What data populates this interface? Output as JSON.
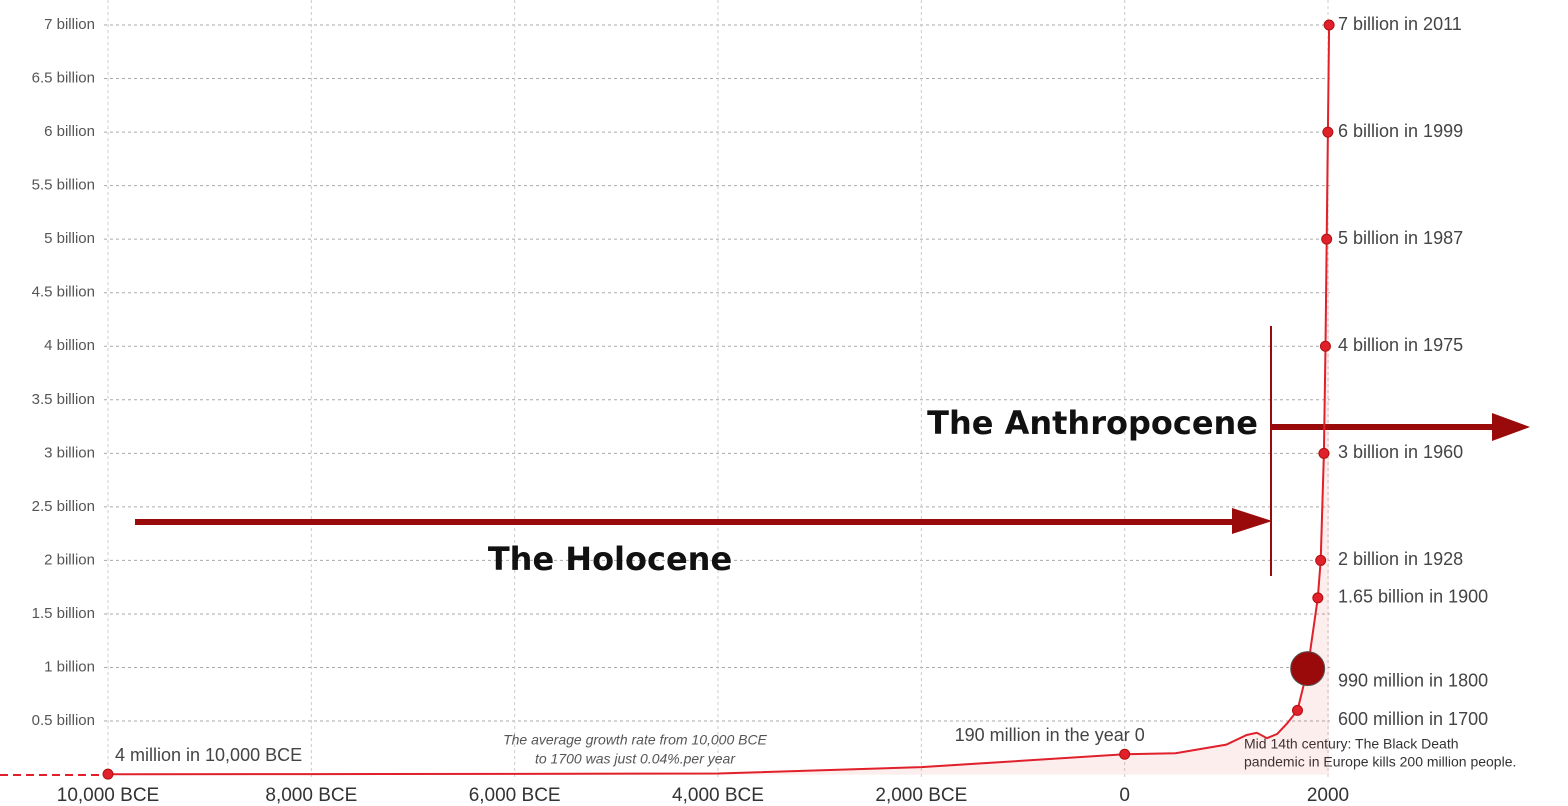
{
  "chart_data": {
    "type": "line",
    "color": "#e0202a",
    "x": [
      -10000,
      -8000,
      -6000,
      -4000,
      -2000,
      0,
      500,
      1000,
      1200,
      1300,
      1400,
      1500,
      1600,
      1700,
      1800,
      1900,
      1928,
      1960,
      1975,
      1987,
      1999,
      2011
    ],
    "values": [
      0.004,
      0.005,
      0.007,
      0.01,
      0.07,
      0.19,
      0.2,
      0.28,
      0.37,
      0.39,
      0.34,
      0.38,
      0.48,
      0.6,
      0.99,
      1.65,
      2,
      3,
      4,
      5,
      6,
      7
    ],
    "markers": {
      "x": [
        -10000,
        0,
        1700,
        1800,
        1900,
        1928,
        1960,
        1975,
        1987,
        1999,
        2011
      ],
      "values": [
        0.004,
        0.19,
        0.6,
        0.99,
        1.65,
        2,
        3,
        4,
        5,
        6,
        7
      ],
      "value_labels": [
        "4 million in 10,000 BCE",
        "190 million in the year 0",
        "600 million in 1700",
        "990 million in 1800",
        "1.65 billion in 1900",
        "2 billion in 1928",
        "3 billion in 1960",
        "4 billion in 1975",
        "5 billion in 1987",
        "6 billion in 1999",
        "7 billion in 2011"
      ]
    },
    "xlim": [
      -10000,
      2000
    ],
    "xticks": [
      {
        "value": -10000,
        "label": "10,000 BCE"
      },
      {
        "value": -8000,
        "label": "8,000 BCE"
      },
      {
        "value": -6000,
        "label": "6,000 BCE"
      },
      {
        "value": -4000,
        "label": "4,000 BCE"
      },
      {
        "value": -2000,
        "label": "2,000 BCE"
      },
      0,
      2000
    ],
    "ylim": [
      0,
      7
    ],
    "yticks": [
      {
        "value": 0.5,
        "label": "0.5 billion"
      },
      {
        "value": 1,
        "label": "1 billion"
      },
      {
        "value": 1.5,
        "label": "1.5 billion"
      },
      {
        "value": 2,
        "label": "2 billion"
      },
      {
        "value": 2.5,
        "label": "2.5 billion"
      },
      {
        "value": 3,
        "label": "3 billion"
      },
      {
        "value": 3.5,
        "label": "3.5  billion"
      },
      {
        "value": 4,
        "label": "4 billion"
      },
      {
        "value": 4.5,
        "label": "4.5 billion"
      },
      {
        "value": 5,
        "label": "5 billion"
      },
      {
        "value": 5.5,
        "label": "5.5 billion"
      },
      {
        "value": 6,
        "label": "6 billion"
      },
      {
        "value": 6.5,
        "label": "6.5 billion"
      },
      {
        "value": 7,
        "label": "7 billion"
      }
    ],
    "grid": true,
    "annotations": {
      "holocene": "The Holocene",
      "anthropocene": "The Anthropocene",
      "growth": [
        "The average growth rate from 10,000 BCE",
        "to 1700 was just  0.04%.per year"
      ],
      "black_death": [
        "Mid 14th century: The Black Death",
        "pandemic in Europe kills 200 million people."
      ]
    }
  }
}
